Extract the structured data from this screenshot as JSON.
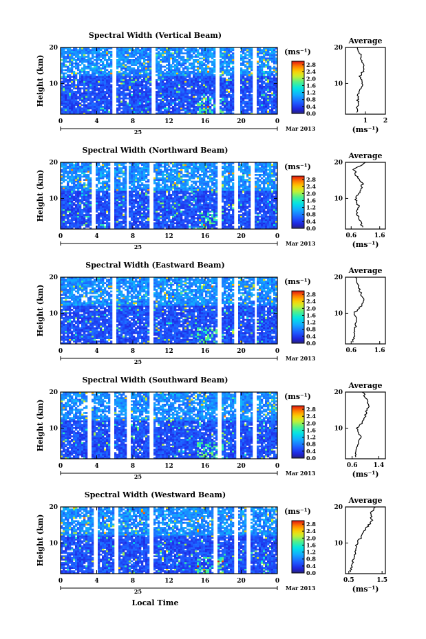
{
  "footer_label": "Local Time",
  "chart_data": [
    {
      "type": "heatmap",
      "title": "Spectral Width (Vertical Beam)",
      "ylabel": "Height (km)",
      "ylim": [
        1.5,
        20
      ],
      "xlim": [
        0,
        24
      ],
      "x_ticks": [
        "0",
        "4",
        "8",
        "12",
        "16",
        "20",
        "0"
      ],
      "date_day": "25",
      "date_label": "Mar 2013",
      "colorbar": {
        "unit_label": "(ms⁻¹)",
        "ticks": [
          "0.0",
          "0.4",
          "0.8",
          "1.2",
          "1.6",
          "2.0",
          "2.4",
          "2.8"
        ],
        "range": [
          0,
          3.0
        ]
      },
      "y_ticks": [
        "10",
        "20"
      ],
      "gaps": [
        [
          5.8,
          6.2
        ],
        [
          10.1,
          10.5
        ],
        [
          17.2,
          17.6
        ],
        [
          19.3,
          19.8
        ],
        [
          21.2,
          21.6
        ]
      ],
      "average_profile": {
        "title": "Average",
        "xlabel": "(ms⁻¹)",
        "x_ticks": [
          "1",
          "2"
        ],
        "xlim": [
          0,
          2
        ],
        "height_km": [
          2,
          4,
          6,
          8,
          10,
          12,
          14,
          16,
          18,
          20
        ],
        "values": [
          0.55,
          0.6,
          0.62,
          0.68,
          0.85,
          0.7,
          0.95,
          0.8,
          0.75,
          0.6
        ]
      }
    },
    {
      "type": "heatmap",
      "title": "Spectral Width (Northward Beam)",
      "ylabel": "Height (km)",
      "ylim": [
        1.5,
        20
      ],
      "xlim": [
        0,
        24
      ],
      "x_ticks": [
        "0",
        "4",
        "8",
        "12",
        "16",
        "20",
        "0"
      ],
      "date_day": "25",
      "date_label": "Mar 2013",
      "colorbar": {
        "unit_label": "(ms⁻¹)",
        "ticks": [
          "0.0",
          "0.4",
          "0.8",
          "1.2",
          "1.6",
          "2.0",
          "2.4",
          "2.8"
        ],
        "range": [
          0,
          3.0
        ]
      },
      "y_ticks": [
        "10",
        "20"
      ],
      "gaps": [
        [
          3.4,
          3.8
        ],
        [
          5.6,
          6.0
        ],
        [
          7.2,
          7.6
        ],
        [
          9.8,
          10.2
        ],
        [
          17.4,
          17.8
        ],
        [
          19.2,
          19.6
        ],
        [
          21.0,
          21.4
        ]
      ],
      "average_profile": {
        "title": "Average",
        "xlabel": "(ms⁻¹)",
        "x_ticks": [
          "0.6",
          "1.6"
        ],
        "xlim": [
          0.4,
          1.8
        ],
        "height_km": [
          2,
          4,
          6,
          8,
          10,
          12,
          14,
          16,
          18,
          20
        ],
        "values": [
          1.0,
          0.9,
          0.8,
          0.85,
          0.75,
          0.9,
          1.0,
          0.8,
          0.7,
          1.1
        ]
      }
    },
    {
      "type": "heatmap",
      "title": "Spectral Width (Eastward Beam)",
      "ylabel": "Height (km)",
      "ylim": [
        1.5,
        20
      ],
      "xlim": [
        0,
        24
      ],
      "x_ticks": [
        "0",
        "4",
        "8",
        "12",
        "16",
        "20",
        "0"
      ],
      "date_day": "25",
      "date_label": "Mar 2013",
      "colorbar": {
        "unit_label": "(ms⁻¹)",
        "ticks": [
          "0.0",
          "0.4",
          "0.8",
          "1.2",
          "1.6",
          "2.0",
          "2.4",
          "2.8"
        ],
        "range": [
          0,
          3.0
        ]
      },
      "y_ticks": [
        "10",
        "20"
      ],
      "gaps": [
        [
          5.8,
          6.2
        ],
        [
          9.8,
          10.2
        ],
        [
          17.4,
          17.8
        ],
        [
          19.2,
          19.6
        ],
        [
          21.4,
          21.8
        ]
      ],
      "average_profile": {
        "title": "Average",
        "xlabel": "",
        "x_ticks": [
          "0.6",
          "1.6"
        ],
        "xlim": [
          0.4,
          1.8
        ],
        "height_km": [
          2,
          4,
          6,
          8,
          10,
          12,
          14,
          16,
          18,
          20
        ],
        "values": [
          0.65,
          0.7,
          0.75,
          0.8,
          0.7,
          0.95,
          1.05,
          0.9,
          0.85,
          0.75
        ]
      }
    },
    {
      "type": "heatmap",
      "title": "Spectral Width (Southward Beam)",
      "ylabel": "Height (km)",
      "ylim": [
        1.5,
        20
      ],
      "xlim": [
        0,
        24
      ],
      "x_ticks": [
        "0",
        "4",
        "8",
        "12",
        "16",
        "20",
        "0"
      ],
      "date_day": "25",
      "date_label": "Mar 2013",
      "colorbar": {
        "unit_label": "(ms⁻¹)",
        "ticks": [
          "0.0",
          "0.4",
          "0.8",
          "1.2",
          "1.6",
          "2.0",
          "2.4",
          "2.8"
        ],
        "range": [
          0,
          3.0
        ]
      },
      "y_ticks": [
        "10",
        "20"
      ],
      "gaps": [
        [
          3.0,
          3.4
        ],
        [
          5.6,
          6.0
        ],
        [
          7.4,
          7.8
        ],
        [
          9.8,
          10.2
        ],
        [
          17.4,
          17.8
        ],
        [
          19.4,
          19.8
        ],
        [
          21.2,
          21.6
        ]
      ],
      "average_profile": {
        "title": "Average",
        "xlabel": "(ms⁻¹)",
        "x_ticks": [
          "0.6",
          "1.4"
        ],
        "xlim": [
          0.4,
          1.6
        ],
        "height_km": [
          2,
          4,
          6,
          8,
          10,
          12,
          14,
          16,
          18,
          20
        ],
        "values": [
          0.7,
          0.75,
          0.8,
          0.85,
          0.75,
          0.95,
          1.0,
          1.1,
          1.05,
          0.9
        ]
      }
    },
    {
      "type": "heatmap",
      "title": "Spectral Width (Westward Beam)",
      "ylabel": "Height (km)",
      "ylim": [
        1.5,
        20
      ],
      "xlim": [
        0,
        24
      ],
      "x_ticks": [
        "0",
        "4",
        "8",
        "12",
        "16",
        "20",
        "0"
      ],
      "date_day": "25",
      "date_label": "Mar 2013",
      "colorbar": {
        "unit_label": "(ms⁻¹)",
        "ticks": [
          "0.0",
          "0.4",
          "0.8",
          "1.2",
          "1.6",
          "2.0",
          "2.4",
          "2.8"
        ],
        "range": [
          0,
          3.0
        ]
      },
      "y_ticks": [
        "10",
        "20"
      ],
      "gaps": [
        [
          3.6,
          4.0
        ],
        [
          6.0,
          6.4
        ],
        [
          9.8,
          10.2
        ],
        [
          17.0,
          17.4
        ],
        [
          19.2,
          19.6
        ],
        [
          20.6,
          21.0
        ]
      ],
      "average_profile": {
        "title": "Average",
        "xlabel": "(ms⁻¹)",
        "x_ticks": [
          "0.5",
          "1.5"
        ],
        "xlim": [
          0.4,
          1.6
        ],
        "height_km": [
          2,
          4,
          6,
          8,
          10,
          12,
          14,
          16,
          18,
          20
        ],
        "values": [
          0.55,
          0.6,
          0.65,
          0.7,
          0.75,
          0.9,
          1.0,
          1.2,
          1.15,
          1.3
        ]
      }
    }
  ]
}
